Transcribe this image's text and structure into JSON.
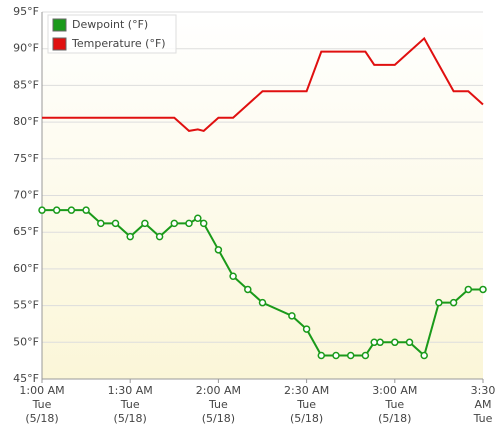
{
  "chart_data": {
    "type": "line",
    "x": [
      "1:00",
      "1:05",
      "1:10",
      "1:15",
      "1:20",
      "1:25",
      "1:30",
      "1:35",
      "1:40",
      "1:45",
      "1:50",
      "1:53",
      "1:55",
      "2:00",
      "2:05",
      "2:10",
      "2:15",
      "2:25",
      "2:30",
      "2:35",
      "2:40",
      "2:45",
      "2:50",
      "2:53",
      "2:55",
      "3:00",
      "3:05",
      "3:10",
      "3:15",
      "3:20",
      "3:25",
      "3:30"
    ],
    "series": [
      {
        "name": "Dewpoint (°F)",
        "color": "#1a9a1a",
        "markers": true,
        "values": [
          68,
          68,
          68,
          68,
          66.2,
          66.2,
          64.4,
          66.2,
          64.4,
          66.2,
          66.2,
          66.9,
          66.2,
          62.6,
          59,
          57.2,
          55.4,
          53.6,
          51.8,
          48.2,
          48.2,
          48.2,
          48.2,
          50,
          50,
          50,
          50,
          48.2,
          55.4,
          55.4,
          57.2,
          57.2
        ]
      },
      {
        "name": "Temperature (°F)",
        "color": "#e01010",
        "markers": false,
        "values": [
          80.6,
          80.6,
          80.6,
          80.6,
          80.6,
          80.6,
          80.6,
          80.6,
          80.6,
          80.6,
          78.8,
          79,
          78.8,
          80.6,
          80.6,
          82.4,
          84.2,
          84.2,
          84.2,
          89.6,
          89.6,
          89.6,
          89.6,
          87.8,
          87.8,
          87.8,
          89.6,
          91.4,
          87.8,
          84.2,
          84.2,
          82.4
        ]
      }
    ],
    "xlim": [
      "1:00",
      "3:30"
    ],
    "xticks": [
      {
        "value": "1:00",
        "label": [
          "1:00 AM",
          "Tue",
          "(5/18)"
        ]
      },
      {
        "value": "1:30",
        "label": [
          "1:30 AM",
          "Tue",
          "(5/18)"
        ]
      },
      {
        "value": "2:00",
        "label": [
          "2:00 AM",
          "Tue",
          "(5/18)"
        ]
      },
      {
        "value": "2:30",
        "label": [
          "2:30 AM",
          "Tue",
          "(5/18)"
        ]
      },
      {
        "value": "3:00",
        "label": [
          "3:00 AM",
          "Tue",
          "(5/18)"
        ]
      },
      {
        "value": "3:30",
        "label": [
          "3:30",
          "AM",
          "Tue"
        ]
      }
    ],
    "ylim": [
      45,
      95
    ],
    "yticks": [
      {
        "value": 45,
        "label": "45°F"
      },
      {
        "value": 50,
        "label": "50°F"
      },
      {
        "value": 55,
        "label": "55°F"
      },
      {
        "value": 60,
        "label": "60°F"
      },
      {
        "value": 65,
        "label": "65°F"
      },
      {
        "value": 70,
        "label": "70°F"
      },
      {
        "value": 75,
        "label": "75°F"
      },
      {
        "value": 80,
        "label": "80°F"
      },
      {
        "value": 85,
        "label": "85°F"
      },
      {
        "value": 90,
        "label": "90°F"
      },
      {
        "value": 95,
        "label": "95°F"
      }
    ],
    "grid": true,
    "legend": "top-left"
  }
}
